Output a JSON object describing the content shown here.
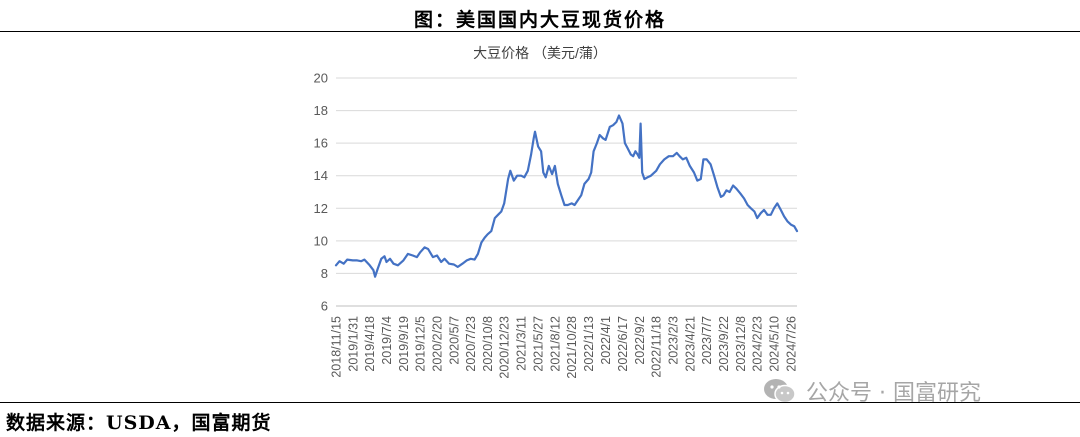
{
  "header": {
    "title": "图：美国国内大豆现货价格"
  },
  "footer": {
    "source": "数据来源：USDA，国富期货"
  },
  "watermark": {
    "text": "公众号 · 国富研究",
    "icon": "wechat-icon"
  },
  "chart_data": {
    "type": "line",
    "title": "大豆价格 （美元/蒲）",
    "xlabel": "",
    "ylabel": "",
    "ylim": [
      6,
      20
    ],
    "yticks": [
      6,
      8,
      10,
      12,
      14,
      16,
      18,
      20
    ],
    "grid": true,
    "legend": "none",
    "x_start": "2018/11/15",
    "x_end": "2024/8/23",
    "xticks": [
      "2018/11/15",
      "2019/1/31",
      "2019/4/18",
      "2019/7/4",
      "2019/9/19",
      "2019/12/5",
      "2020/2/20",
      "2020/5/7",
      "2020/7/23",
      "2020/10/8",
      "2020/12/23",
      "2021/3/11",
      "2021/5/27",
      "2021/8/12",
      "2021/10/28",
      "2022/1/13",
      "2022/4/1",
      "2022/6/17",
      "2022/9/2",
      "2022/11/18",
      "2023/2/3",
      "2023/4/21",
      "2023/7/7",
      "2023/9/22",
      "2023/12/8",
      "2024/2/23",
      "2024/5/10",
      "2024/7/26"
    ],
    "series": [
      {
        "color": "#4472c4",
        "points": [
          [
            "2018/11/15",
            8.5
          ],
          [
            "2018/12/1",
            8.75
          ],
          [
            "2018/12/20",
            8.6
          ],
          [
            "2019/1/5",
            8.85
          ],
          [
            "2019/1/31",
            8.8
          ],
          [
            "2019/2/20",
            8.8
          ],
          [
            "2019/3/10",
            8.75
          ],
          [
            "2019/3/25",
            8.85
          ],
          [
            "2019/4/18",
            8.5
          ],
          [
            "2019/5/5",
            8.2
          ],
          [
            "2019/5/13",
            7.8
          ],
          [
            "2019/5/25",
            8.3
          ],
          [
            "2019/6/10",
            8.9
          ],
          [
            "2019/6/25",
            9.05
          ],
          [
            "2019/7/4",
            8.7
          ],
          [
            "2019/7/20",
            8.9
          ],
          [
            "2019/8/5",
            8.6
          ],
          [
            "2019/8/25",
            8.5
          ],
          [
            "2019/9/19",
            8.8
          ],
          [
            "2019/10/10",
            9.2
          ],
          [
            "2019/11/1",
            9.1
          ],
          [
            "2019/11/20",
            9.0
          ],
          [
            "2019/12/5",
            9.3
          ],
          [
            "2019/12/25",
            9.6
          ],
          [
            "2020/1/10",
            9.5
          ],
          [
            "2020/2/1",
            9.0
          ],
          [
            "2020/2/20",
            9.1
          ],
          [
            "2020/3/10",
            8.7
          ],
          [
            "2020/3/25",
            8.9
          ],
          [
            "2020/4/15",
            8.6
          ],
          [
            "2020/5/7",
            8.55
          ],
          [
            "2020/5/25",
            8.4
          ],
          [
            "2020/6/15",
            8.6
          ],
          [
            "2020/7/5",
            8.8
          ],
          [
            "2020/7/23",
            8.9
          ],
          [
            "2020/8/10",
            8.85
          ],
          [
            "2020/8/25",
            9.2
          ],
          [
            "2020/9/10",
            9.9
          ],
          [
            "2020/9/25",
            10.2
          ],
          [
            "2020/10/8",
            10.4
          ],
          [
            "2020/10/25",
            10.6
          ],
          [
            "2020/11/10",
            11.4
          ],
          [
            "2020/11/25",
            11.6
          ],
          [
            "2020/12/10",
            11.8
          ],
          [
            "2020/12/23",
            12.3
          ],
          [
            "2021/1/10",
            13.8
          ],
          [
            "2021/1/20",
            14.3
          ],
          [
            "2021/2/5",
            13.7
          ],
          [
            "2021/2/20",
            14.0
          ],
          [
            "2021/3/11",
            14.0
          ],
          [
            "2021/3/25",
            13.9
          ],
          [
            "2021/4/10",
            14.3
          ],
          [
            "2021/4/25",
            15.3
          ],
          [
            "2021/5/7",
            16.3
          ],
          [
            "2021/5/13",
            16.7
          ],
          [
            "2021/5/27",
            15.8
          ],
          [
            "2021/6/10",
            15.5
          ],
          [
            "2021/6/20",
            14.2
          ],
          [
            "2021/7/1",
            13.9
          ],
          [
            "2021/7/15",
            14.6
          ],
          [
            "2021/7/30",
            14.1
          ],
          [
            "2021/8/12",
            14.6
          ],
          [
            "2021/8/25",
            13.5
          ],
          [
            "2021/9/10",
            12.8
          ],
          [
            "2021/9/25",
            12.2
          ],
          [
            "2021/10/10",
            12.2
          ],
          [
            "2021/10/28",
            12.3
          ],
          [
            "2021/11/10",
            12.2
          ],
          [
            "2021/11/25",
            12.5
          ],
          [
            "2021/12/10",
            12.8
          ],
          [
            "2021/12/25",
            13.5
          ],
          [
            "2022/1/13",
            13.8
          ],
          [
            "2022/1/25",
            14.2
          ],
          [
            "2022/2/5",
            15.5
          ],
          [
            "2022/2/20",
            16.0
          ],
          [
            "2022/3/5",
            16.5
          ],
          [
            "2022/3/20",
            16.3
          ],
          [
            "2022/4/1",
            16.2
          ],
          [
            "2022/4/20",
            17.0
          ],
          [
            "2022/5/5",
            17.1
          ],
          [
            "2022/5/20",
            17.3
          ],
          [
            "2022/6/1",
            17.7
          ],
          [
            "2022/6/17",
            17.2
          ],
          [
            "2022/6/28",
            16.0
          ],
          [
            "2022/7/10",
            15.7
          ],
          [
            "2022/7/25",
            15.3
          ],
          [
            "2022/8/5",
            15.2
          ],
          [
            "2022/8/15",
            15.5
          ],
          [
            "2022/8/25",
            15.3
          ],
          [
            "2022/9/2",
            15.1
          ],
          [
            "2022/9/8",
            17.2
          ],
          [
            "2022/9/15",
            14.2
          ],
          [
            "2022/9/25",
            13.8
          ],
          [
            "2022/10/10",
            13.9
          ],
          [
            "2022/10/25",
            14.0
          ],
          [
            "2022/11/18",
            14.3
          ],
          [
            "2022/12/5",
            14.7
          ],
          [
            "2022/12/25",
            15.0
          ],
          [
            "2023/1/15",
            15.2
          ],
          [
            "2023/2/3",
            15.2
          ],
          [
            "2023/2/20",
            15.4
          ],
          [
            "2023/3/5",
            15.2
          ],
          [
            "2023/3/20",
            15.0
          ],
          [
            "2023/4/5",
            15.1
          ],
          [
            "2023/4/21",
            14.6
          ],
          [
            "2023/5/10",
            14.2
          ],
          [
            "2023/5/25",
            13.7
          ],
          [
            "2023/6/10",
            13.8
          ],
          [
            "2023/6/22",
            15.0
          ],
          [
            "2023/7/7",
            15.0
          ],
          [
            "2023/7/25",
            14.7
          ],
          [
            "2023/8/10",
            14.0
          ],
          [
            "2023/8/25",
            13.3
          ],
          [
            "2023/9/10",
            12.7
          ],
          [
            "2023/9/22",
            12.8
          ],
          [
            "2023/10/5",
            13.1
          ],
          [
            "2023/10/20",
            13.0
          ],
          [
            "2023/11/5",
            13.4
          ],
          [
            "2023/11/20",
            13.2
          ],
          [
            "2023/12/8",
            12.9
          ],
          [
            "2023/12/25",
            12.6
          ],
          [
            "2024/1/10",
            12.2
          ],
          [
            "2024/1/25",
            12.0
          ],
          [
            "2024/2/10",
            11.8
          ],
          [
            "2024/2/23",
            11.4
          ],
          [
            "2024/3/10",
            11.7
          ],
          [
            "2024/3/25",
            11.9
          ],
          [
            "2024/4/10",
            11.6
          ],
          [
            "2024/4/25",
            11.6
          ],
          [
            "2024/5/10",
            12.0
          ],
          [
            "2024/5/25",
            12.3
          ],
          [
            "2024/6/10",
            11.9
          ],
          [
            "2024/6/25",
            11.5
          ],
          [
            "2024/7/10",
            11.2
          ],
          [
            "2024/7/26",
            11.0
          ],
          [
            "2024/8/10",
            10.9
          ],
          [
            "2024/8/23",
            10.6
          ]
        ]
      }
    ]
  }
}
